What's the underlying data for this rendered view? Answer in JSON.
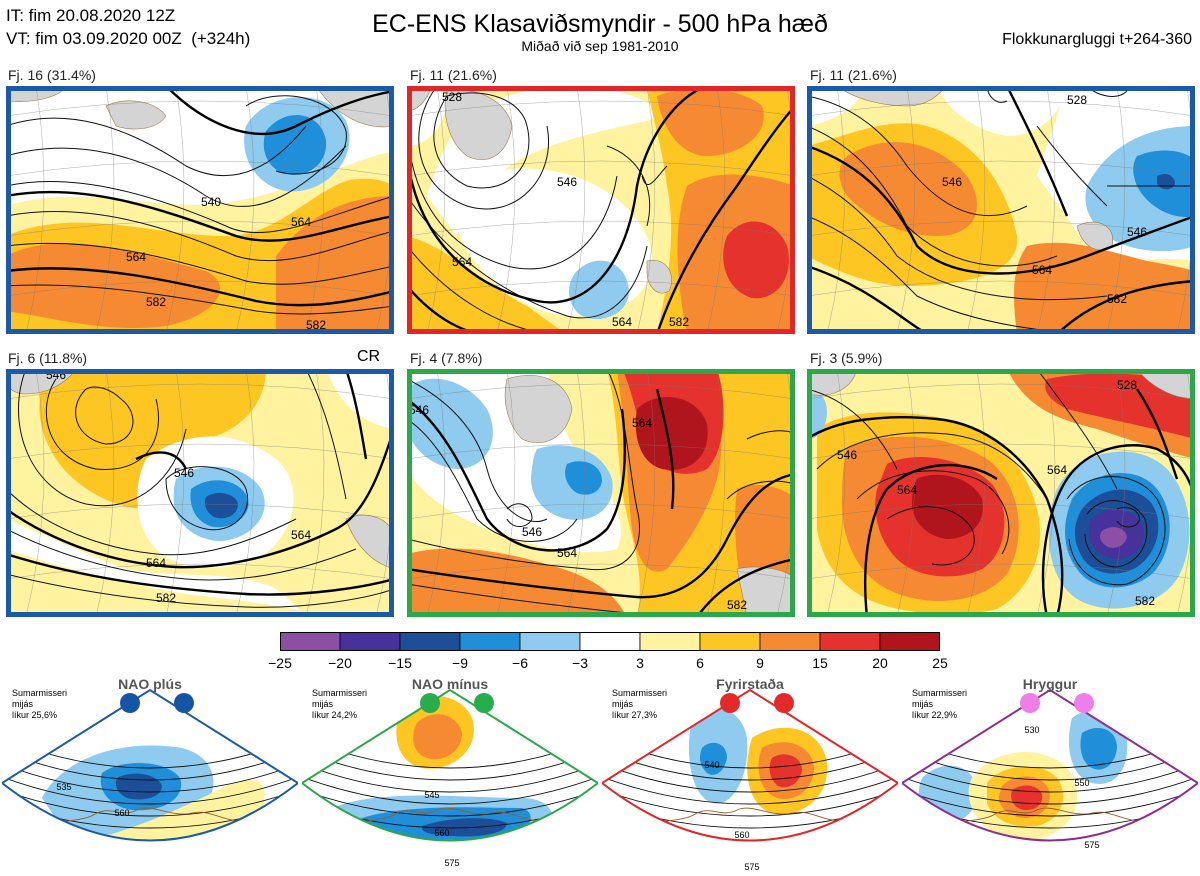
{
  "header": {
    "it_line": "IT: fim 20.08.2020 12Z",
    "vt_line": "VT: fim 03.09.2020 00Z  (+324h)",
    "title": "EC-ENS Klasaviðsmyndir - 500 hPa hæð",
    "subtitle": "Miðað við sep 1981-2010",
    "window": "Flokkunargluggi t+264-360"
  },
  "clusters": [
    {
      "label": "Fj. 16 (31.4%)",
      "frame_color": "#1a5aa8",
      "regime": "NAO plús",
      "extra": "",
      "contour_labels": [
        "540",
        "564",
        "564",
        "582",
        "582"
      ]
    },
    {
      "label": "Fj. 11 (21.6%)",
      "frame_color": "#e02626",
      "regime": "Fyrirstaða",
      "extra": "",
      "contour_labels": [
        "528",
        "546",
        "564",
        "564",
        "582"
      ]
    },
    {
      "label": "Fj. 11 (21.6%)",
      "frame_color": "#1a5aa8",
      "regime": "NAO plús",
      "extra": "",
      "contour_labels": [
        "528",
        "546",
        "546",
        "564",
        "582"
      ]
    },
    {
      "label": "Fj. 6 (11.8%)",
      "frame_color": "#1a5aa8",
      "regime": "NAO plús",
      "extra": "CR",
      "contour_labels": [
        "546",
        "546",
        "564",
        "564",
        "582"
      ]
    },
    {
      "label": "Fj. 4 (7.8%)",
      "frame_color": "#2aa84a",
      "regime": "NAO mínus",
      "extra": "",
      "contour_labels": [
        "546",
        "546",
        "564",
        "564",
        "582"
      ]
    },
    {
      "label": "Fj. 3 (5.9%)",
      "frame_color": "#2aa84a",
      "regime": "NAO mínus",
      "extra": "",
      "contour_labels": [
        "528",
        "546",
        "564",
        "564",
        "582"
      ]
    }
  ],
  "colorbar": {
    "ticks": [
      "−25",
      "−20",
      "−15",
      "−9",
      "−6",
      "−3",
      "3",
      "6",
      "9",
      "15",
      "20",
      "25"
    ],
    "colors": [
      "#8d4fa6",
      "#47319a",
      "#1d4f99",
      "#1f8fd9",
      "#8ecbee",
      "#ffffff",
      "#fff3a0",
      "#fdc623",
      "#f58a32",
      "#e5322c",
      "#b0141c"
    ]
  },
  "regimes": [
    {
      "name": "NAO plús",
      "info": "Sumarmisseri\nmijás\nlíkur 25,6%",
      "color": "#1a5aa8",
      "dot_color": "#1655a5",
      "contour_labels": [
        "535",
        "560"
      ]
    },
    {
      "name": "NAO mínus",
      "info": "Sumarmisseri\nmijás\nlíkur 24,2%",
      "color": "#2aa84a",
      "dot_color": "#27ad4c",
      "contour_labels": [
        "545",
        "560",
        "575"
      ]
    },
    {
      "name": "Fyrirstaða",
      "info": "Sumarmisseri\nmijás\nlíkur 27,3%",
      "color": "#e02626",
      "dot_color": "#e22a2a",
      "contour_labels": [
        "540",
        "560",
        "575"
      ]
    },
    {
      "name": "Hryggur",
      "info": "Sumarmisseri\nmijás\nlíkur 22,9%",
      "color": "#8e2d91",
      "dot_color": "#ee7fe8",
      "contour_labels": [
        "530",
        "550",
        "575"
      ]
    }
  ]
}
